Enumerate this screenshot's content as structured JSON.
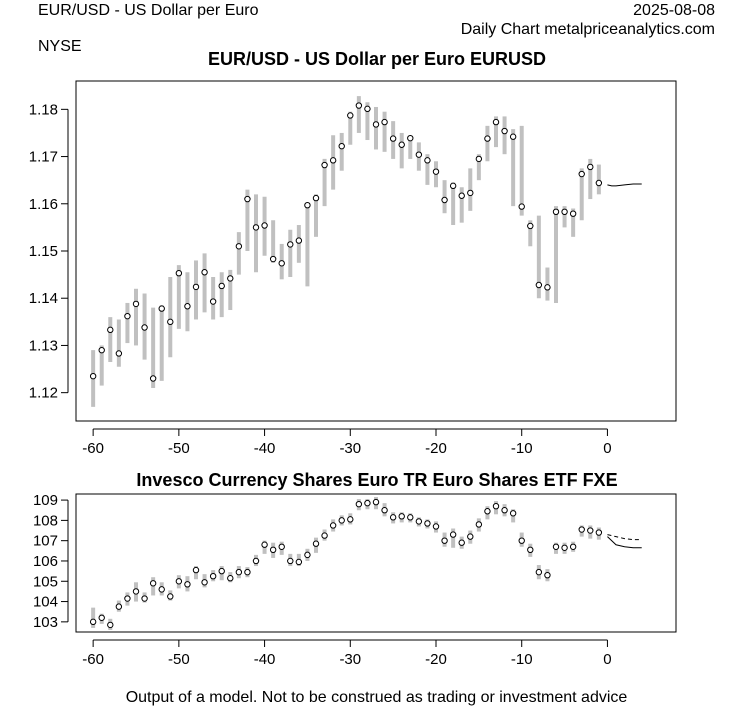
{
  "header": {
    "title": "EUR/USD - US Dollar per Euro",
    "date": "2025-08-08",
    "source": "Daily Chart metalpriceanalytics.com",
    "exchange": "NYSE"
  },
  "footer": {
    "disclaimer": "Output of a model. Not to be construed as trading or investment advice"
  },
  "colors": {
    "range_bar": "#c0c0c0",
    "point_stroke": "#000000",
    "point_fill": "#ffffff",
    "forecast": "#000000"
  },
  "chart_data": [
    {
      "type": "ohlc-range",
      "title": "EUR/USD - US Dollar per Euro EURUSD",
      "xlim": [
        -62,
        8
      ],
      "ylim": [
        1.114,
        1.186
      ],
      "x_ticks": [
        -60,
        -50,
        -40,
        -30,
        -20,
        -10,
        0
      ],
      "y_ticks": [
        1.12,
        1.13,
        1.14,
        1.15,
        1.16,
        1.17,
        1.18
      ],
      "grid": false,
      "x": [
        -60,
        -59,
        -58,
        -57,
        -56,
        -55,
        -54,
        -53,
        -52,
        -51,
        -50,
        -49,
        -48,
        -47,
        -46,
        -45,
        -44,
        -43,
        -42,
        -41,
        -40,
        -39,
        -38,
        -37,
        -36,
        -35,
        -34,
        -33,
        -32,
        -31,
        -30,
        -29,
        -28,
        -27,
        -26,
        -25,
        -24,
        -23,
        -22,
        -21,
        -20,
        -19,
        -18,
        -17,
        -16,
        -15,
        -14,
        -13,
        -12,
        -11,
        -10,
        -9,
        -8,
        -7,
        -6,
        -5,
        -4,
        -3,
        -2,
        -1
      ],
      "close": [
        1.1235,
        1.129,
        1.1333,
        1.1283,
        1.1362,
        1.1388,
        1.1338,
        1.123,
        1.1378,
        1.135,
        1.1453,
        1.1383,
        1.1424,
        1.1455,
        1.1393,
        1.1426,
        1.1442,
        1.151,
        1.161,
        1.155,
        1.1554,
        1.1483,
        1.1474,
        1.1514,
        1.1522,
        1.1597,
        1.1612,
        1.1682,
        1.1692,
        1.1722,
        1.1787,
        1.1808,
        1.1801,
        1.1768,
        1.1773,
        1.1738,
        1.1725,
        1.1739,
        1.1704,
        1.1692,
        1.1668,
        1.1608,
        1.1638,
        1.1617,
        1.1623,
        1.1695,
        1.1738,
        1.1773,
        1.1754,
        1.1742,
        1.1594,
        1.1553,
        1.1428,
        1.1423,
        1.1583,
        1.1583,
        1.1579,
        1.1663,
        1.1678,
        1.1644
      ],
      "low": [
        1.117,
        1.1215,
        1.1265,
        1.1255,
        1.1305,
        1.13,
        1.127,
        1.121,
        1.1225,
        1.1275,
        1.1335,
        1.133,
        1.1355,
        1.137,
        1.1355,
        1.136,
        1.1375,
        1.145,
        1.15,
        1.1455,
        1.149,
        1.1475,
        1.144,
        1.1445,
        1.1475,
        1.1425,
        1.153,
        1.1595,
        1.163,
        1.167,
        1.1725,
        1.175,
        1.1735,
        1.1715,
        1.171,
        1.1695,
        1.1675,
        1.1695,
        1.167,
        1.164,
        1.1635,
        1.158,
        1.1555,
        1.156,
        1.1585,
        1.165,
        1.169,
        1.172,
        1.1705,
        1.1595,
        1.1575,
        1.151,
        1.14,
        1.1395,
        1.139,
        1.155,
        1.153,
        1.1565,
        1.161,
        1.162
      ],
      "high": [
        1.129,
        1.13,
        1.136,
        1.1355,
        1.139,
        1.142,
        1.141,
        1.138,
        1.1385,
        1.1445,
        1.147,
        1.1455,
        1.148,
        1.1495,
        1.1445,
        1.1455,
        1.146,
        1.154,
        1.163,
        1.162,
        1.1615,
        1.1565,
        1.1515,
        1.1545,
        1.1555,
        1.16,
        1.162,
        1.1695,
        1.1745,
        1.175,
        1.1795,
        1.1828,
        1.1815,
        1.1805,
        1.1795,
        1.1775,
        1.175,
        1.174,
        1.173,
        1.1705,
        1.169,
        1.165,
        1.1645,
        1.1635,
        1.1675,
        1.1705,
        1.1765,
        1.1785,
        1.1785,
        1.1758,
        1.1765,
        1.1565,
        1.1575,
        1.1465,
        1.1595,
        1.1595,
        1.159,
        1.1675,
        1.1695,
        1.1683
      ],
      "forecast": {
        "x": [
          0,
          0.5,
          1,
          2,
          3,
          4
        ],
        "y": [
          1.164,
          1.1638,
          1.1638,
          1.164,
          1.1642,
          1.1642
        ]
      }
    },
    {
      "type": "ohlc-range",
      "title": "Invesco Currency Shares Euro TR Euro Shares ETF FXE",
      "xlim": [
        -62,
        8
      ],
      "ylim": [
        102.5,
        109.3
      ],
      "x_ticks": [
        -60,
        -50,
        -40,
        -30,
        -20,
        -10,
        0
      ],
      "y_ticks": [
        103,
        104,
        105,
        106,
        107,
        108,
        109
      ],
      "grid": false,
      "x": [
        -60,
        -59,
        -58,
        -57,
        -56,
        -55,
        -54,
        -53,
        -52,
        -51,
        -50,
        -49,
        -48,
        -47,
        -46,
        -45,
        -44,
        -43,
        -42,
        -41,
        -40,
        -39,
        -38,
        -37,
        -36,
        -35,
        -34,
        -33,
        -32,
        -31,
        -30,
        -29,
        -28,
        -27,
        -26,
        -25,
        -24,
        -23,
        -22,
        -21,
        -20,
        -19,
        -18,
        -17,
        -16,
        -15,
        -14,
        -13,
        -12,
        -11,
        -10,
        -9,
        -8,
        -7,
        -6,
        -5,
        -4,
        -3,
        -2,
        -1
      ],
      "close": [
        103.0,
        103.2,
        102.85,
        103.75,
        104.15,
        104.5,
        104.15,
        104.9,
        104.6,
        104.25,
        105.0,
        104.85,
        105.55,
        104.95,
        105.25,
        105.5,
        105.15,
        105.45,
        105.45,
        106.0,
        106.8,
        106.55,
        106.7,
        106.0,
        105.95,
        106.3,
        106.85,
        107.25,
        107.75,
        108.0,
        108.05,
        108.8,
        108.85,
        108.9,
        108.5,
        108.15,
        108.2,
        108.15,
        107.95,
        107.85,
        107.7,
        107.0,
        107.3,
        106.9,
        107.2,
        107.8,
        108.45,
        108.7,
        108.5,
        108.35,
        107.0,
        106.55,
        105.45,
        105.3,
        106.7,
        106.65,
        106.7,
        107.55,
        107.5,
        107.4
      ],
      "low": [
        102.7,
        102.9,
        102.6,
        103.5,
        103.8,
        104.0,
        103.95,
        104.3,
        104.3,
        104.05,
        104.65,
        104.5,
        105.1,
        104.7,
        105.0,
        105.05,
        104.95,
        105.15,
        105.2,
        105.75,
        106.35,
        106.15,
        106.3,
        105.75,
        105.75,
        106.0,
        106.4,
        107.0,
        107.45,
        107.75,
        107.8,
        108.5,
        108.55,
        108.55,
        108.2,
        107.85,
        107.9,
        107.9,
        107.7,
        107.6,
        107.4,
        106.7,
        106.65,
        106.6,
        106.85,
        107.45,
        108.05,
        108.3,
        108.2,
        107.9,
        106.7,
        106.2,
        105.1,
        105.0,
        106.35,
        106.35,
        106.45,
        107.2,
        107.1,
        107.05
      ],
      "high": [
        103.7,
        103.4,
        103.15,
        104.05,
        104.45,
        104.95,
        104.45,
        105.2,
        104.95,
        104.55,
        105.3,
        105.25,
        105.75,
        105.35,
        105.55,
        105.75,
        105.45,
        105.75,
        105.7,
        106.3,
        107.0,
        106.9,
        106.95,
        106.35,
        106.35,
        106.6,
        107.15,
        107.55,
        108.05,
        108.25,
        108.35,
        109.05,
        109.05,
        109.15,
        108.85,
        108.4,
        108.4,
        108.35,
        108.15,
        108.05,
        107.95,
        107.4,
        107.6,
        107.2,
        107.5,
        108.1,
        108.7,
        108.95,
        108.8,
        108.55,
        107.4,
        106.85,
        105.8,
        105.6,
        106.9,
        106.9,
        106.95,
        107.75,
        107.75,
        107.65
      ],
      "forecast": [
        {
          "style": "dashed",
          "x": [
            0,
            1,
            2,
            3,
            4
          ],
          "y": [
            107.3,
            107.2,
            107.1,
            107.05,
            107.05
          ]
        },
        {
          "style": "solid",
          "x": [
            0,
            1,
            2,
            3,
            4
          ],
          "y": [
            107.2,
            106.8,
            106.7,
            106.65,
            106.65
          ]
        }
      ]
    }
  ]
}
